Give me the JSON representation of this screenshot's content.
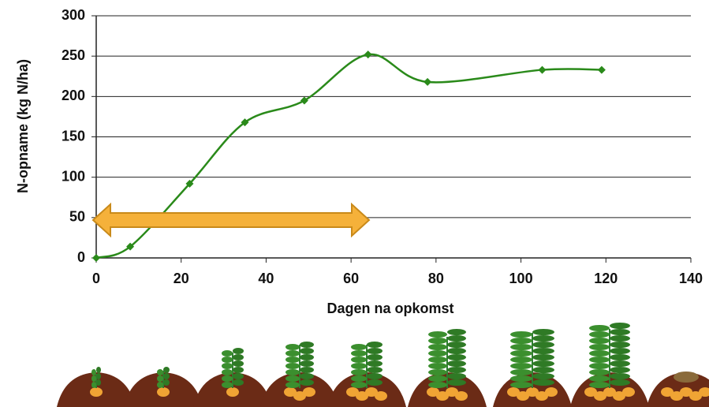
{
  "chart_data": {
    "type": "line",
    "x_label": "Dagen na opkomst",
    "y_label": "N-opname (kg N/ha)",
    "x": [
      0,
      8,
      22,
      35,
      49,
      64,
      78,
      105,
      119
    ],
    "series": [
      {
        "color": "#2a8a1a",
        "values": [
          0,
          14,
          92,
          168,
          195,
          252,
          218,
          233,
          233
        ]
      }
    ],
    "xlim": [
      0,
      140
    ],
    "xticks": [
      0,
      20,
      40,
      60,
      80,
      100,
      120,
      140
    ],
    "ylim": [
      0,
      300
    ],
    "yticks": [
      0,
      50,
      100,
      150,
      200,
      250,
      300
    ],
    "grid": true
  }
}
